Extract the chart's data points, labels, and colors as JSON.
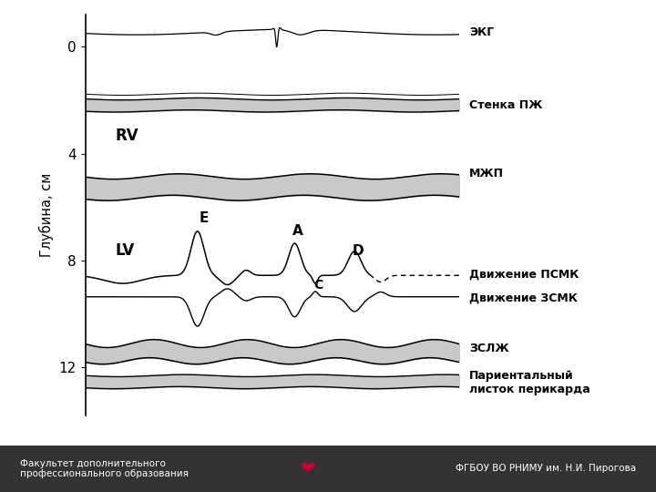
{
  "ylabel": "Глубина, см",
  "yticks": [
    0,
    4,
    8,
    12
  ],
  "xlim": [
    0,
    10
  ],
  "ylim": [
    13.8,
    -1.2
  ],
  "bg_color": "#ffffff",
  "gray_fill": "#c0c0c0",
  "labels": {
    "EKG": "ЭКГ",
    "stenkaPJ": "Стенка ПЖ",
    "MJP": "МЖП",
    "dvijPSMK": "Движение ПСМК",
    "dvijZSMK": "Движение ЗСМК",
    "ZSLJ": "ЗСЛЖ",
    "pariental": "Париентальный\nлисток перикарда",
    "RV": "RV",
    "LV": "LV",
    "E": "E",
    "A": "A",
    "C": "C",
    "D": "D"
  },
  "footer_left": "Факультет дополнительного\nпрофессионального образования",
  "footer_right": "ФГБОУ ВО РНИМУ им. Н.И. Пирогова",
  "footer_bg": "#333333",
  "footer_text_color": "#ffffff",
  "heart_color": "#cc0033"
}
